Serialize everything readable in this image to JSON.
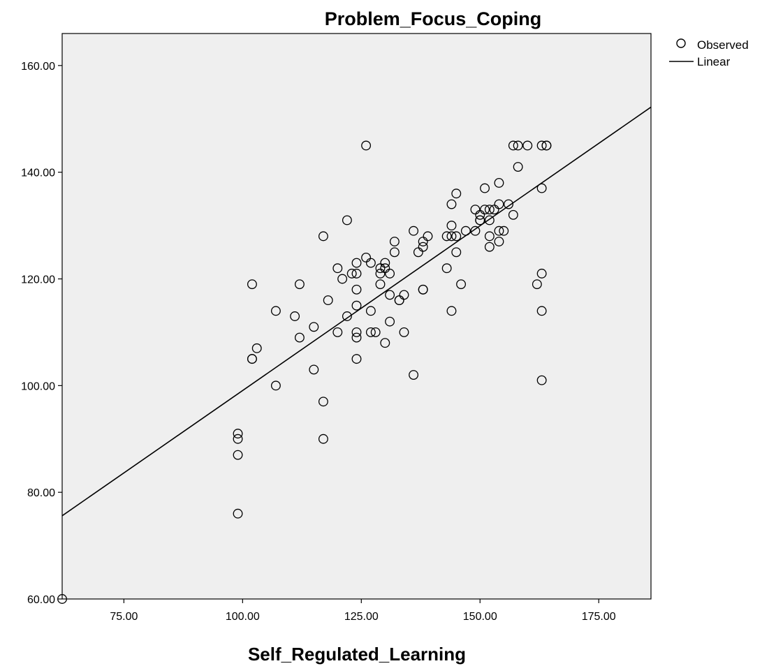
{
  "chart_data": {
    "type": "scatter",
    "title": "Problem_Focus_Coping",
    "xlabel": "Self_Regulated_Learning",
    "ylabel": "",
    "xlim": [
      62,
      186
    ],
    "ylim": [
      60,
      166
    ],
    "xticks": [
      75,
      100,
      125,
      150,
      175
    ],
    "yticks": [
      60,
      80,
      100,
      120,
      140,
      160
    ],
    "xtick_labels": [
      "75.00",
      "100.00",
      "125.00",
      "150.00",
      "175.00"
    ],
    "ytick_labels": [
      "60.00",
      "80.00",
      "100.00",
      "120.00",
      "140.00",
      "160.00"
    ],
    "grid": false,
    "background": "#efefef",
    "legend": {
      "placement": "top-right outside",
      "entries": [
        {
          "label": "Observed",
          "marker": "circle"
        },
        {
          "label": "Linear",
          "marker": "line"
        }
      ]
    },
    "series": [
      {
        "name": "Observed",
        "type": "scatter",
        "points": [
          [
            62,
            60
          ],
          [
            99,
            76
          ],
          [
            99,
            87
          ],
          [
            99,
            90
          ],
          [
            99,
            91
          ],
          [
            102,
            105
          ],
          [
            102,
            105
          ],
          [
            102,
            119
          ],
          [
            103,
            107
          ],
          [
            107,
            100
          ],
          [
            107,
            114
          ],
          [
            111,
            113
          ],
          [
            112,
            109
          ],
          [
            112,
            119
          ],
          [
            115,
            103
          ],
          [
            115,
            111
          ],
          [
            117,
            90
          ],
          [
            117,
            97
          ],
          [
            117,
            128
          ],
          [
            118,
            116
          ],
          [
            120,
            110
          ],
          [
            120,
            122
          ],
          [
            121,
            120
          ],
          [
            122,
            113
          ],
          [
            122,
            131
          ],
          [
            123,
            121
          ],
          [
            124,
            105
          ],
          [
            124,
            109
          ],
          [
            124,
            110
          ],
          [
            124,
            115
          ],
          [
            124,
            118
          ],
          [
            124,
            121
          ],
          [
            124,
            123
          ],
          [
            126,
            124
          ],
          [
            126,
            145
          ],
          [
            127,
            110
          ],
          [
            127,
            114
          ],
          [
            127,
            123
          ],
          [
            128,
            110
          ],
          [
            129,
            119
          ],
          [
            129,
            121
          ],
          [
            129,
            122
          ],
          [
            130,
            108
          ],
          [
            130,
            122
          ],
          [
            130,
            123
          ],
          [
            131,
            112
          ],
          [
            131,
            117
          ],
          [
            131,
            121
          ],
          [
            132,
            125
          ],
          [
            132,
            127
          ],
          [
            133,
            116
          ],
          [
            133,
            116
          ],
          [
            134,
            110
          ],
          [
            134,
            117
          ],
          [
            136,
            102
          ],
          [
            136,
            129
          ],
          [
            137,
            125
          ],
          [
            138,
            118
          ],
          [
            138,
            118
          ],
          [
            138,
            126
          ],
          [
            138,
            127
          ],
          [
            139,
            128
          ],
          [
            143,
            122
          ],
          [
            143,
            128
          ],
          [
            144,
            114
          ],
          [
            144,
            128
          ],
          [
            144,
            130
          ],
          [
            144,
            134
          ],
          [
            145,
            125
          ],
          [
            145,
            128
          ],
          [
            145,
            136
          ],
          [
            146,
            119
          ],
          [
            147,
            129
          ],
          [
            149,
            129
          ],
          [
            149,
            133
          ],
          [
            150,
            131
          ],
          [
            150,
            131
          ],
          [
            150,
            132
          ],
          [
            151,
            133
          ],
          [
            151,
            137
          ],
          [
            152,
            126
          ],
          [
            152,
            128
          ],
          [
            152,
            131
          ],
          [
            152,
            133
          ],
          [
            153,
            133
          ],
          [
            154,
            127
          ],
          [
            154,
            129
          ],
          [
            154,
            134
          ],
          [
            154,
            138
          ],
          [
            155,
            129
          ],
          [
            156,
            134
          ],
          [
            157,
            132
          ],
          [
            157,
            145
          ],
          [
            158,
            141
          ],
          [
            158,
            145
          ],
          [
            160,
            145
          ],
          [
            162,
            119
          ],
          [
            163,
            101
          ],
          [
            163,
            114
          ],
          [
            163,
            121
          ],
          [
            163,
            137
          ],
          [
            163,
            145
          ],
          [
            164,
            145
          ],
          [
            164,
            145
          ]
        ]
      },
      {
        "name": "Linear",
        "type": "line",
        "points": [
          [
            62,
            75.6
          ],
          [
            186,
            152.2
          ]
        ]
      }
    ]
  }
}
